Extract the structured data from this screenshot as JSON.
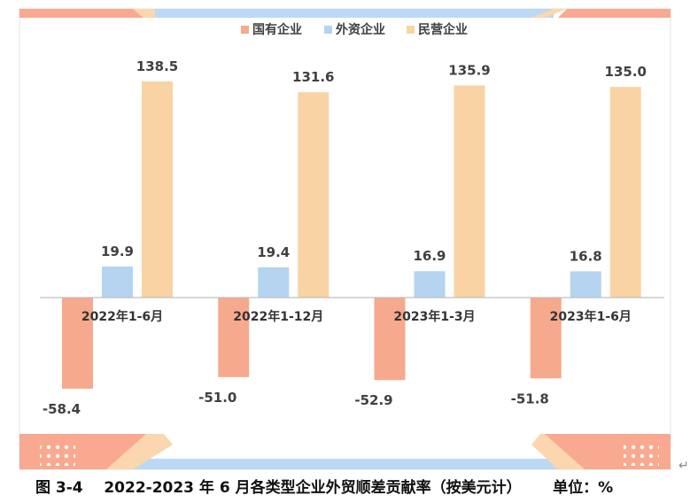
{
  "colors": {
    "state": "#F6A98D",
    "foreign": "#B4D4F0",
    "private": "#F9D3A3",
    "frame_accent": "#F8A98F",
    "frame_blue": "#BBD9F5",
    "frame_peach": "#FBD6AE"
  },
  "caption": {
    "figure_no": "图 3-4",
    "text": "2022-2023 年 6 月各类型企业外贸顺差贡献率（按美元计）",
    "unit": "单位：%",
    "return_mark": "↵"
  },
  "chart_data": {
    "type": "bar",
    "title": "",
    "xlabel": "",
    "ylabel": "",
    "ylim": [
      -65,
      150
    ],
    "grid": false,
    "legend_position": "top",
    "categories": [
      "2022年1-6月",
      "2022年1-12月",
      "2023年1-3月",
      "2023年1-6月"
    ],
    "series": [
      {
        "name": "国有企业",
        "color_key": "state",
        "values": [
          -58.4,
          -51.0,
          -52.9,
          -51.8
        ]
      },
      {
        "name": "外资企业",
        "color_key": "foreign",
        "values": [
          19.9,
          19.4,
          16.9,
          16.8
        ]
      },
      {
        "name": "民营企业",
        "color_key": "private",
        "values": [
          138.5,
          131.6,
          135.9,
          135.0
        ]
      }
    ]
  }
}
